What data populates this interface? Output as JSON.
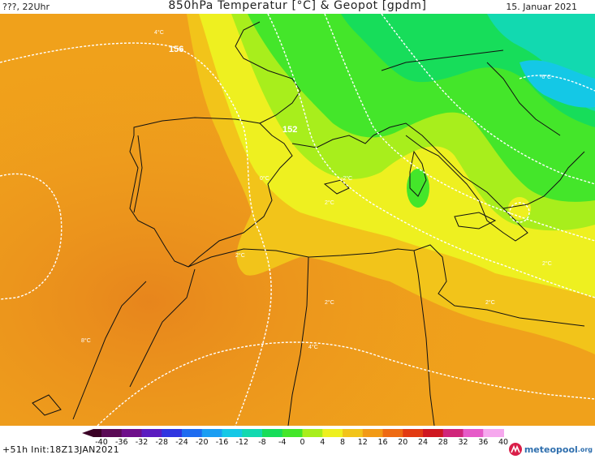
{
  "header": {
    "left": "???, 22Uhr",
    "title": "850hPa Temperatur [°C] & Geopot [gpdm]",
    "date": "15. Januar 2021"
  },
  "map": {
    "contour_labels": {
      "c156": "156",
      "c152": "152",
      "t1": "4°C",
      "t2": "0°C",
      "t3": "-2°C",
      "t4": "2°C",
      "t5": "2°C",
      "t6": "2°C",
      "t7": "2°C",
      "t8": "4°C",
      "t9": "-6°C",
      "t10": "8°C"
    }
  },
  "colorbar": {
    "ticks": [
      "-40",
      "-36",
      "-32",
      "-28",
      "-24",
      "-20",
      "-16",
      "-12",
      "-8",
      "-4",
      "0",
      "4",
      "8",
      "12",
      "16",
      "20",
      "24",
      "28",
      "32",
      "36",
      "40"
    ],
    "colors": [
      "#3a0025",
      "#5a0a55",
      "#6e0e8a",
      "#5b1cc0",
      "#2f35e0",
      "#1e6cf0",
      "#1a9ef3",
      "#14c8e6",
      "#12d9b0",
      "#17dd5a",
      "#44e62a",
      "#a8ee1c",
      "#eef020",
      "#f2c41a",
      "#f29a15",
      "#ee6a12",
      "#e23a12",
      "#cf1620",
      "#d0257a",
      "#e65ac8",
      "#f6a8ee"
    ]
  },
  "footer": {
    "info": "+51h Init:18Z13JAN2021"
  },
  "brand": {
    "name": "meteopool",
    "suffix": ".org"
  }
}
